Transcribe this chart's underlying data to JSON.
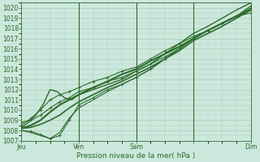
{
  "title": "",
  "xlabel": "Pression niveau de la mer( hPa )",
  "ylim": [
    1007,
    1020.5
  ],
  "xlim": [
    0,
    96
  ],
  "yticks": [
    1007,
    1008,
    1009,
    1010,
    1011,
    1012,
    1013,
    1014,
    1015,
    1016,
    1017,
    1018,
    1019,
    1020
  ],
  "xtick_positions": [
    0,
    24,
    48,
    72,
    96
  ],
  "xtick_labels": [
    "Jeu",
    "Ven",
    "Sam",
    "",
    "Dim"
  ],
  "bg_color": "#cce8dc",
  "grid_color": "#aacfbf",
  "line_color": "#2d6b2d",
  "lines": [
    {
      "x": [
        0,
        4,
        8,
        12,
        16,
        20,
        24,
        30,
        36,
        42,
        48,
        54,
        60,
        66,
        72,
        78,
        84,
        90,
        96
      ],
      "y": [
        1008.2,
        1008.3,
        1008.6,
        1009.0,
        1009.5,
        1010.2,
        1010.8,
        1011.5,
        1012.2,
        1012.8,
        1013.5,
        1014.2,
        1015.0,
        1015.8,
        1016.8,
        1017.5,
        1018.2,
        1019.0,
        1019.8
      ],
      "marker": null,
      "lw": 1.2
    },
    {
      "x": [
        0,
        4,
        8,
        12,
        16,
        20,
        24,
        30,
        36,
        42,
        48,
        54,
        60,
        66,
        72,
        78,
        84,
        90,
        96
      ],
      "y": [
        1008.0,
        1007.9,
        1007.6,
        1007.2,
        1007.5,
        1009.0,
        1010.5,
        1011.2,
        1012.0,
        1012.5,
        1013.2,
        1014.0,
        1015.0,
        1016.0,
        1017.0,
        1017.8,
        1018.5,
        1019.2,
        1019.5
      ],
      "marker": "+",
      "lw": 0.8
    },
    {
      "x": [
        0,
        4,
        8,
        12,
        16,
        20,
        24,
        30,
        36,
        42,
        48,
        54,
        60,
        66,
        72,
        78,
        84,
        90,
        96
      ],
      "y": [
        1008.5,
        1009.2,
        1010.0,
        1011.0,
        1011.5,
        1011.8,
        1012.2,
        1012.8,
        1013.2,
        1013.8,
        1014.2,
        1015.0,
        1015.8,
        1016.5,
        1017.2,
        1017.8,
        1018.5,
        1019.2,
        1020.2
      ],
      "marker": "+",
      "lw": 0.8
    },
    {
      "x": [
        0,
        3,
        6,
        9,
        12,
        15,
        18,
        21,
        24,
        30,
        36,
        42,
        48,
        54,
        60,
        66,
        72,
        78,
        84,
        90,
        96
      ],
      "y": [
        1008.3,
        1008.8,
        1009.5,
        1010.5,
        1012.0,
        1011.8,
        1011.2,
        1011.0,
        1011.5,
        1012.0,
        1012.5,
        1013.0,
        1013.8,
        1014.5,
        1015.5,
        1016.5,
        1017.5,
        1018.2,
        1019.0,
        1019.8,
        1020.5
      ],
      "marker": null,
      "lw": 1.0
    },
    {
      "x": [
        0,
        4,
        8,
        12,
        16,
        20,
        24,
        30,
        36,
        42,
        48,
        54,
        60,
        66,
        72,
        78,
        84,
        90,
        96
      ],
      "y": [
        1008.0,
        1007.8,
        1007.5,
        1007.2,
        1007.8,
        1009.2,
        1010.2,
        1011.0,
        1011.8,
        1012.5,
        1013.2,
        1014.0,
        1015.0,
        1016.0,
        1017.0,
        1017.8,
        1018.5,
        1019.2,
        1020.0
      ],
      "marker": null,
      "lw": 0.8
    },
    {
      "x": [
        0,
        4,
        8,
        12,
        16,
        20,
        24,
        30,
        36,
        42,
        48,
        54,
        60,
        66,
        72,
        78,
        84,
        90,
        96
      ],
      "y": [
        1008.8,
        1009.0,
        1009.5,
        1010.2,
        1010.8,
        1011.2,
        1011.8,
        1012.2,
        1012.8,
        1013.2,
        1013.8,
        1014.5,
        1015.2,
        1016.0,
        1017.0,
        1017.8,
        1018.5,
        1019.2,
        1020.0
      ],
      "marker": "+",
      "lw": 0.8
    },
    {
      "x": [
        0,
        4,
        8,
        12,
        16,
        20,
        24,
        30,
        36,
        42,
        48,
        54,
        60,
        66,
        72,
        78,
        84,
        90,
        96
      ],
      "y": [
        1008.2,
        1008.5,
        1009.0,
        1009.8,
        1010.5,
        1011.0,
        1011.5,
        1012.2,
        1012.8,
        1013.5,
        1014.0,
        1014.8,
        1015.5,
        1016.2,
        1017.0,
        1017.8,
        1018.5,
        1019.2,
        1019.8
      ],
      "marker": null,
      "lw": 1.5
    }
  ],
  "vlines": [
    24,
    48,
    72
  ],
  "vline_color": "#2d6b2d",
  "figsize": [
    3.2,
    2.0
  ],
  "dpi": 100
}
